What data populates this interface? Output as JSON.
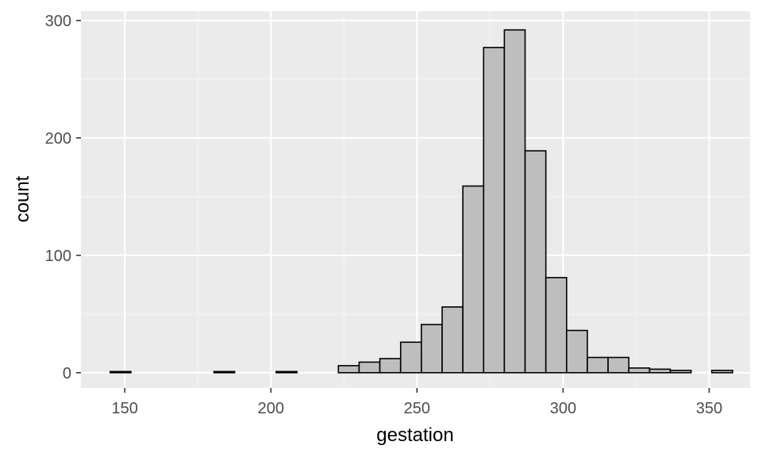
{
  "chart_data": {
    "type": "bar",
    "subtype": "histogram",
    "xlabel": "gestation",
    "ylabel": "count",
    "xlim": [
      135,
      364
    ],
    "ylim": [
      -13,
      308
    ],
    "x_ticks": [
      150,
      200,
      250,
      300,
      350
    ],
    "y_ticks": [
      0,
      100,
      200,
      300
    ],
    "x_tick_labels": [
      "150",
      "200",
      "250",
      "300",
      "350"
    ],
    "y_tick_labels": [
      "0",
      "100",
      "200",
      "300"
    ],
    "grid": true,
    "legend": "none",
    "bin_width": 7.1,
    "bins": [
      {
        "x0": 145.0,
        "x1": 152.1,
        "count": 1
      },
      {
        "x0": 152.1,
        "x1": 159.2,
        "count": 0
      },
      {
        "x0": 159.2,
        "x1": 166.3,
        "count": 0
      },
      {
        "x0": 166.3,
        "x1": 173.4,
        "count": 0
      },
      {
        "x0": 173.4,
        "x1": 180.5,
        "count": 0
      },
      {
        "x0": 180.5,
        "x1": 187.6,
        "count": 1
      },
      {
        "x0": 187.6,
        "x1": 194.7,
        "count": 0
      },
      {
        "x0": 194.7,
        "x1": 201.8,
        "count": 0
      },
      {
        "x0": 201.8,
        "x1": 208.9,
        "count": 1
      },
      {
        "x0": 208.9,
        "x1": 216.0,
        "count": 0
      },
      {
        "x0": 216.0,
        "x1": 223.1,
        "count": 0
      },
      {
        "x0": 223.1,
        "x1": 230.2,
        "count": 6
      },
      {
        "x0": 230.2,
        "x1": 237.3,
        "count": 9
      },
      {
        "x0": 237.3,
        "x1": 244.4,
        "count": 12
      },
      {
        "x0": 244.4,
        "x1": 251.5,
        "count": 26
      },
      {
        "x0": 251.5,
        "x1": 258.6,
        "count": 41
      },
      {
        "x0": 258.6,
        "x1": 265.7,
        "count": 56
      },
      {
        "x0": 265.7,
        "x1": 272.8,
        "count": 159
      },
      {
        "x0": 272.8,
        "x1": 279.9,
        "count": 277
      },
      {
        "x0": 279.9,
        "x1": 287.0,
        "count": 292
      },
      {
        "x0": 287.0,
        "x1": 294.1,
        "count": 189
      },
      {
        "x0": 294.1,
        "x1": 301.2,
        "count": 81
      },
      {
        "x0": 301.2,
        "x1": 308.3,
        "count": 36
      },
      {
        "x0": 308.3,
        "x1": 315.4,
        "count": 13
      },
      {
        "x0": 315.4,
        "x1": 322.5,
        "count": 13
      },
      {
        "x0": 322.5,
        "x1": 329.6,
        "count": 4
      },
      {
        "x0": 329.6,
        "x1": 336.7,
        "count": 3
      },
      {
        "x0": 336.7,
        "x1": 343.8,
        "count": 2
      },
      {
        "x0": 343.8,
        "x1": 350.9,
        "count": 0
      },
      {
        "x0": 350.9,
        "x1": 358.0,
        "count": 2
      }
    ],
    "colors": {
      "panel_background": "#ebebeb",
      "grid_major": "#ffffff",
      "grid_minor": "#f5f5f5",
      "bar_fill": "#bebebe",
      "bar_outline": "#000000",
      "tick_color": "#333333"
    }
  }
}
